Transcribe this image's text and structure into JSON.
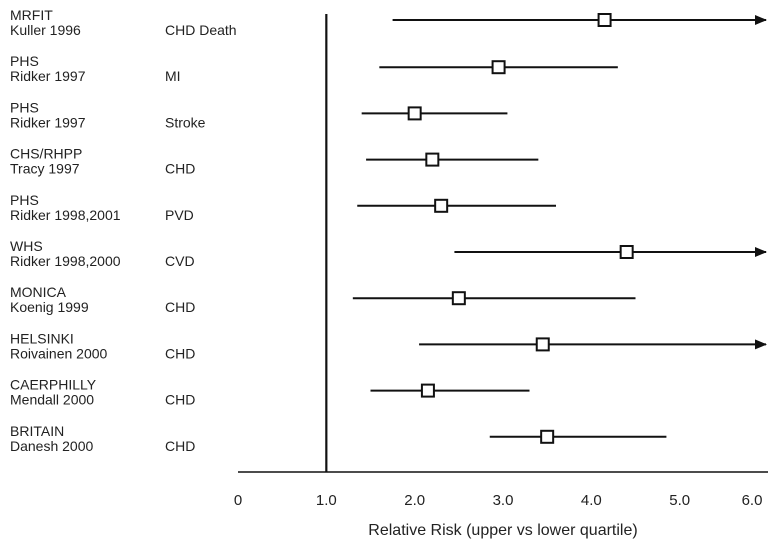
{
  "chart_data": {
    "type": "forest",
    "xlabel": "Relative Risk (upper vs lower quartile)",
    "xlim": [
      0,
      6.0
    ],
    "reference_line": 1.0,
    "x_ticks": [
      "0",
      "1.0",
      "2.0",
      "3.0",
      "4.0",
      "5.0",
      "6.0"
    ],
    "studies": [
      {
        "study": "MRFIT",
        "author": "Kuller 1996",
        "outcome": "CHD Death",
        "rr": 4.15,
        "ci_low": 1.75,
        "ci_high": 6.0,
        "arrow": true
      },
      {
        "study": "PHS",
        "author": "Ridker 1997",
        "outcome": "MI",
        "rr": 2.95,
        "ci_low": 1.6,
        "ci_high": 4.3,
        "arrow": false
      },
      {
        "study": "PHS",
        "author": "Ridker 1997",
        "outcome": "Stroke",
        "rr": 2.0,
        "ci_low": 1.4,
        "ci_high": 3.05,
        "arrow": false
      },
      {
        "study": "CHS/RHPP",
        "author": "Tracy 1997",
        "outcome": "CHD",
        "rr": 2.2,
        "ci_low": 1.45,
        "ci_high": 3.4,
        "arrow": false
      },
      {
        "study": "PHS",
        "author": "Ridker 1998,2001",
        "outcome": "PVD",
        "rr": 2.3,
        "ci_low": 1.35,
        "ci_high": 3.6,
        "arrow": false
      },
      {
        "study": "WHS",
        "author": "Ridker 1998,2000",
        "outcome": "CVD",
        "rr": 4.4,
        "ci_low": 2.45,
        "ci_high": 6.0,
        "arrow": true
      },
      {
        "study": "MONICA",
        "author": "Koenig 1999",
        "outcome": "CHD",
        "rr": 2.5,
        "ci_low": 1.3,
        "ci_high": 4.5,
        "arrow": false
      },
      {
        "study": "HELSINKI",
        "author": "Roivainen 2000",
        "outcome": "CHD",
        "rr": 3.45,
        "ci_low": 2.05,
        "ci_high": 6.0,
        "arrow": true
      },
      {
        "study": "CAERPHILLY",
        "author": "Mendall 2000",
        "outcome": "CHD",
        "rr": 2.15,
        "ci_low": 1.5,
        "ci_high": 3.3,
        "arrow": false
      },
      {
        "study": "BRITAIN",
        "author": "Danesh 2000",
        "outcome": "CHD",
        "rr": 3.5,
        "ci_low": 2.85,
        "ci_high": 4.85,
        "arrow": false
      }
    ]
  }
}
